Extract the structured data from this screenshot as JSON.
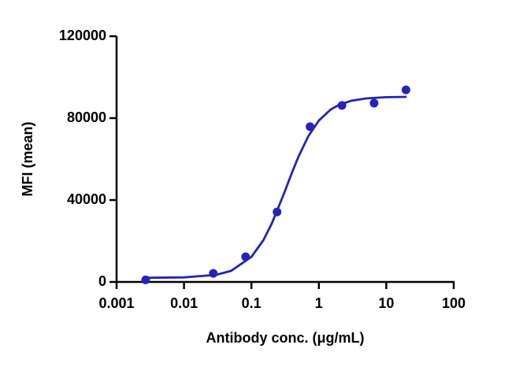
{
  "chart_data": {
    "type": "scatter",
    "xlabel": "Antibody conc. (μg/mL)",
    "ylabel": "MFI (mean)",
    "xscale": "log",
    "xlim": [
      0.001,
      100
    ],
    "xticks": [
      0.001,
      0.01,
      0.1,
      1,
      10,
      100
    ],
    "ylim": [
      0,
      120000
    ],
    "yticks": [
      0,
      40000,
      80000,
      120000
    ],
    "series": [
      {
        "kind": "points",
        "color": "#2424b8",
        "x": [
          0.0027,
          0.0272,
          0.082,
          0.24,
          0.74,
          2.2,
          6.6,
          19.6
        ],
        "values": [
          1000,
          4200,
          12300,
          34200,
          75800,
          86200,
          87300,
          93800
        ]
      },
      {
        "kind": "line",
        "color": "#2424b8",
        "x": [
          0.003,
          0.01,
          0.03,
          0.05,
          0.1,
          0.15,
          0.2,
          0.3,
          0.4,
          0.5,
          0.7,
          1,
          1.5,
          2,
          3,
          5,
          10,
          20
        ],
        "values": [
          2030,
          2230,
          3480,
          5440,
          12280,
          20360,
          28500,
          42670,
          53420,
          61240,
          71250,
          78820,
          84230,
          86550,
          88470,
          89630,
          90240,
          90400
        ]
      }
    ]
  }
}
